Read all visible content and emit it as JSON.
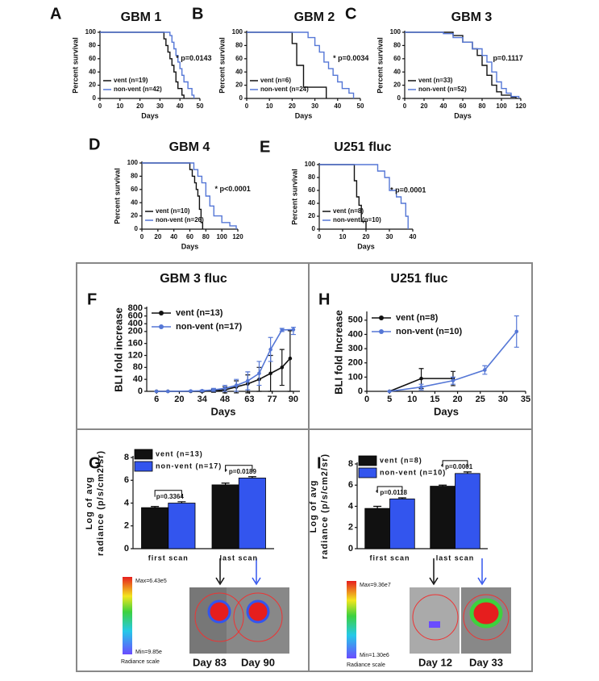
{
  "chart_data": [
    {
      "type": "step",
      "label": "A",
      "title": "GBM 1",
      "xlabel": "Days",
      "ylabel": [
        "Percent survival"
      ],
      "xlim": [
        0,
        50
      ],
      "ylim": [
        0,
        100
      ],
      "xticks": [
        0,
        10,
        20,
        30,
        40,
        50
      ],
      "yticks": [
        0,
        20,
        40,
        60,
        80,
        100
      ],
      "annotations": [
        "* p=0.0143"
      ],
      "series": [
        {
          "name": "vent (n=19)",
          "color": "#111111",
          "x": [
            0,
            30,
            32,
            33,
            34,
            35,
            36,
            37,
            38,
            39,
            41,
            42
          ],
          "values": [
            100,
            100,
            90,
            80,
            70,
            60,
            50,
            40,
            25,
            15,
            5,
            0
          ]
        },
        {
          "name": "non-vent (n=42)",
          "color": "#5577d6",
          "x": [
            0,
            33,
            35,
            36,
            37,
            38,
            39,
            40,
            41,
            42,
            44,
            46,
            47
          ],
          "values": [
            100,
            100,
            95,
            85,
            75,
            65,
            55,
            45,
            35,
            25,
            15,
            5,
            0
          ]
        }
      ]
    },
    {
      "type": "step",
      "label": "B",
      "title": "GBM 2",
      "xlabel": "Days",
      "ylabel": [
        "Percent survival"
      ],
      "xlim": [
        0,
        50
      ],
      "ylim": [
        0,
        100
      ],
      "xticks": [
        0,
        10,
        20,
        30,
        40,
        50
      ],
      "yticks": [
        0,
        20,
        40,
        60,
        80,
        100
      ],
      "annotations": [
        "* p=0.0034"
      ],
      "series": [
        {
          "name": "vent (n=6)",
          "color": "#111111",
          "x": [
            0,
            19,
            20,
            22,
            25,
            35
          ],
          "values": [
            100,
            100,
            83,
            50,
            17,
            0
          ]
        },
        {
          "name": "non-vent (n=24)",
          "color": "#5577d6",
          "x": [
            0,
            25,
            27,
            30,
            32,
            34,
            36,
            38,
            40,
            42,
            45,
            47
          ],
          "values": [
            100,
            100,
            92,
            80,
            70,
            55,
            45,
            35,
            25,
            15,
            8,
            0
          ]
        }
      ]
    },
    {
      "type": "step",
      "label": "C",
      "title": "GBM 3",
      "xlabel": "Days",
      "ylabel": [
        "Percent survival"
      ],
      "xlim": [
        0,
        120
      ],
      "ylim": [
        0,
        100
      ],
      "xticks": [
        0,
        20,
        40,
        60,
        80,
        100,
        120
      ],
      "yticks": [
        0,
        20,
        40,
        60,
        80,
        100
      ],
      "annotations": [
        "p=0.1117"
      ],
      "series": [
        {
          "name": "vent (n=33)",
          "color": "#111111",
          "x": [
            0,
            40,
            50,
            60,
            70,
            75,
            80,
            85,
            90,
            95,
            100,
            110,
            115
          ],
          "values": [
            100,
            100,
            95,
            85,
            75,
            65,
            50,
            35,
            20,
            10,
            5,
            2,
            0
          ]
        },
        {
          "name": "non-vent (n=52)",
          "color": "#5577d6",
          "x": [
            0,
            40,
            50,
            60,
            70,
            80,
            85,
            90,
            95,
            100,
            105,
            110,
            118
          ],
          "values": [
            100,
            98,
            92,
            85,
            75,
            65,
            55,
            40,
            25,
            15,
            8,
            3,
            0
          ]
        }
      ]
    },
    {
      "type": "step",
      "label": "D",
      "title": "GBM 4",
      "xlabel": "Days",
      "ylabel": [
        "Percent survival"
      ],
      "xlim": [
        0,
        120
      ],
      "ylim": [
        0,
        100
      ],
      "xticks": [
        0,
        20,
        40,
        60,
        80,
        100,
        120
      ],
      "yticks": [
        0,
        20,
        40,
        60,
        80,
        100
      ],
      "annotations": [
        "* p<0.0001"
      ],
      "series": [
        {
          "name": "vent (n=10)",
          "color": "#111111",
          "x": [
            0,
            55,
            60,
            63,
            66,
            68,
            70,
            72,
            74,
            76
          ],
          "values": [
            100,
            100,
            90,
            80,
            70,
            60,
            50,
            30,
            10,
            0
          ]
        },
        {
          "name": "non-vent (n=26)",
          "color": "#5577d6",
          "x": [
            0,
            60,
            65,
            70,
            75,
            80,
            85,
            90,
            100,
            110,
            118
          ],
          "values": [
            100,
            100,
            90,
            80,
            70,
            50,
            35,
            20,
            10,
            5,
            0
          ]
        }
      ]
    },
    {
      "type": "step",
      "label": "E",
      "title": "U251 fluc",
      "xlabel": "Days",
      "ylabel": [
        "Percent survival"
      ],
      "xlim": [
        0,
        40
      ],
      "ylim": [
        0,
        100
      ],
      "xticks": [
        0,
        10,
        20,
        30,
        40
      ],
      "yticks": [
        0,
        20,
        40,
        60,
        80,
        100
      ],
      "annotations": [
        "* p=0.0001"
      ],
      "series": [
        {
          "name": "vent (n=8)",
          "color": "#111111",
          "x": [
            0,
            13,
            15,
            16,
            17,
            18,
            20
          ],
          "values": [
            100,
            100,
            75,
            50,
            37,
            12,
            0
          ]
        },
        {
          "name": "non-vent (n=10)",
          "color": "#5577d6",
          "x": [
            0,
            15,
            25,
            28,
            30,
            33,
            35,
            37,
            38
          ],
          "values": [
            100,
            100,
            90,
            80,
            60,
            50,
            40,
            20,
            0
          ]
        }
      ]
    },
    {
      "type": "line",
      "label": "F",
      "title": "GBM 3 fluc",
      "xlabel": "Days",
      "ylabel": [
        "BLI fold increase"
      ],
      "xlim": [
        0,
        94
      ],
      "ylim": [
        0,
        800
      ],
      "ybreak": 200,
      "xticks": [
        6,
        20,
        34,
        48,
        63,
        77,
        90
      ],
      "yticks": [
        0,
        40,
        80,
        120,
        160,
        200,
        400,
        600,
        800
      ],
      "series": [
        {
          "name": "vent (n=13)",
          "color": "#111111",
          "x": [
            6,
            13,
            27,
            34,
            41,
            48,
            55,
            62,
            69,
            76,
            83,
            88
          ],
          "values": [
            0,
            0,
            0,
            0,
            2,
            5,
            15,
            25,
            40,
            60,
            80,
            110
          ],
          "errors": [
            0,
            0,
            0,
            2,
            5,
            10,
            20,
            30,
            40,
            60,
            60,
            110
          ]
        },
        {
          "name": "non-vent (n=17)",
          "color": "#5577d6",
          "x": [
            6,
            13,
            27,
            34,
            41,
            48,
            55,
            62,
            69,
            76,
            83,
            90
          ],
          "values": [
            0,
            0,
            1,
            2,
            5,
            10,
            20,
            35,
            60,
            140,
            240,
            250
          ],
          "errors": [
            0,
            0,
            1,
            2,
            5,
            10,
            20,
            30,
            40,
            40,
            40,
            60
          ]
        }
      ]
    },
    {
      "type": "line",
      "label": "H",
      "title": "U251 fluc",
      "xlabel": "Days",
      "ylabel": [
        "BLI fold Increase"
      ],
      "xlim": [
        0,
        35
      ],
      "ylim": [
        0,
        550
      ],
      "xticks": [
        0,
        5,
        10,
        15,
        20,
        25,
        30,
        35
      ],
      "yticks": [
        0,
        100,
        200,
        300,
        400,
        500
      ],
      "series": [
        {
          "name": "vent (n=8)",
          "color": "#111111",
          "x": [
            5,
            12,
            19
          ],
          "values": [
            0,
            90,
            90
          ],
          "errors": [
            0,
            70,
            50
          ]
        },
        {
          "name": "non-vent (n=10)",
          "color": "#5577d6",
          "x": [
            5,
            12,
            19,
            26,
            33
          ],
          "values": [
            0,
            30,
            75,
            150,
            420
          ],
          "errors": [
            0,
            20,
            25,
            30,
            110
          ]
        }
      ]
    },
    {
      "type": "bar",
      "label": "G",
      "ylabel": [
        "Log of avg",
        "radiance (p/s/cm2/sr)"
      ],
      "ylim": [
        0,
        8
      ],
      "yticks": [
        0,
        2,
        4,
        6,
        8
      ],
      "categories": [
        "first scan",
        "last scan"
      ],
      "annotations": [
        "p=0.3364",
        "* p=0.0189"
      ],
      "series": [
        {
          "name": "vent (n=13)",
          "color": "#111111",
          "values": [
            3.6,
            5.6
          ],
          "errors": [
            0.1,
            0.15
          ]
        },
        {
          "name": "non-vent (n=17)",
          "color": "#3355ee",
          "values": [
            4.0,
            6.2
          ],
          "errors": [
            0.12,
            0.12
          ]
        }
      ]
    },
    {
      "type": "bar",
      "label": "I",
      "ylabel": [
        "Log of avg",
        "radiance (p/s/cm2/sr)"
      ],
      "ylim": [
        0,
        8
      ],
      "yticks": [
        0,
        2,
        4,
        6,
        8
      ],
      "categories": [
        "first scan",
        "last scan"
      ],
      "annotations": [
        "* p=0.0118",
        "* p=0.0001"
      ],
      "series": [
        {
          "name": "vent (n=8)",
          "color": "#111111",
          "values": [
            3.8,
            5.9
          ],
          "errors": [
            0.2,
            0.1
          ]
        },
        {
          "name": "non-vent (n=10)",
          "color": "#3355ee",
          "values": [
            4.7,
            7.1
          ],
          "errors": [
            0.1,
            0.15
          ]
        }
      ]
    }
  ],
  "images": [
    {
      "max": "Max=6.43e5",
      "min": "Min=9.85e",
      "scale": "Radiance scale",
      "days": [
        "Day 83",
        "Day 90"
      ]
    },
    {
      "max": "Max=9.36e7",
      "min": "Min=1.30e6",
      "scale": "Radiance scale",
      "days": [
        "Day 12",
        "Day 33"
      ]
    }
  ]
}
